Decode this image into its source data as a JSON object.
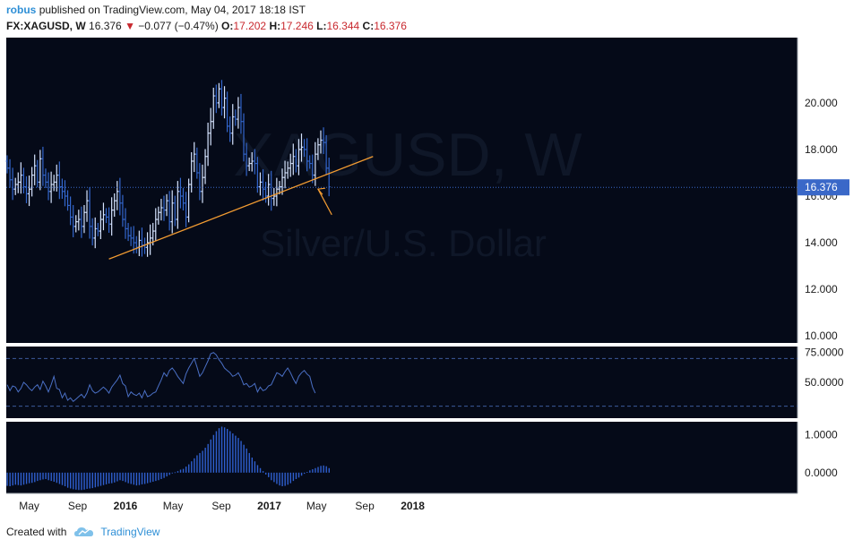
{
  "header": {
    "author": "robus",
    "published": "published on TradingView.com, May 04, 2017 18:18 IST",
    "symbol": "FX:XAGUSD, W",
    "last": "16.376",
    "change_arrow": "▼",
    "change": "−0.077 (−0.47%)",
    "open_label": "O:",
    "open": "17.202",
    "high_label": "H:",
    "high": "17.246",
    "low_label": "L:",
    "low": "16.344",
    "close_label": "C:",
    "close": "16.376"
  },
  "watermark": {
    "symbol": "XAGUSD, W",
    "name": "Silver/U.S. Dollar"
  },
  "footer": {
    "created_with": "Created with",
    "brand": "TradingView",
    "icon": "tradingview-cloud-icon"
  },
  "colors": {
    "background": "#050a18",
    "bar": "#3366cc",
    "bar_highlight": "#d6e4ff",
    "trendline": "#f39c32",
    "rsi_line": "#4a6fc4",
    "macd_hist": "#2f5fcf",
    "last_price_label_bg": "#3a68c8"
  },
  "chart_data": [
    {
      "type": "ohlc",
      "panel": "price",
      "yaxis_ticks": [
        "20.000",
        "18.000",
        "16.000",
        "14.000",
        "12.000",
        "10.000"
      ],
      "ylim": [
        9.7,
        22.8
      ],
      "last_price_label": "16.376",
      "xaxis_ticks": [
        "May",
        "Sep",
        "2016",
        "May",
        "Sep",
        "2017",
        "May",
        "Sep",
        "2018"
      ],
      "xaxis_bold": [
        "2016",
        "2017",
        "2018"
      ],
      "x_start": "2015-03-06",
      "weekly_close": [
        17.2,
        16.7,
        16.3,
        16.5,
        16.6,
        16.9,
        16.4,
        16.1,
        16.3,
        16.9,
        17.3,
        16.6,
        17.6,
        16.9,
        16.6,
        16.2,
        16.5,
        16.6,
        16.9,
        16.4,
        16.2,
        16.0,
        15.6,
        15.1,
        14.7,
        14.9,
        15.0,
        14.7,
        15.3,
        15.8,
        14.7,
        14.2,
        14.6,
        14.5,
        15.0,
        15.2,
        15.1,
        14.8,
        15.4,
        15.8,
        16.2,
        15.7,
        15.0,
        14.6,
        14.3,
        14.2,
        14.0,
        13.8,
        14.1,
        13.9,
        13.8,
        14.0,
        14.2,
        14.5,
        15.0,
        15.3,
        15.5,
        15.4,
        15.8,
        14.9,
        15.7,
        15.0,
        16.2,
        16.0,
        15.7,
        15.1,
        16.5,
        17.5,
        17.8,
        17.0,
        16.2,
        16.8,
        17.7,
        18.7,
        19.2,
        20.3,
        20.0,
        20.6,
        19.8,
        20.2,
        19.0,
        18.7,
        19.4,
        19.3,
        19.8,
        19.2,
        17.8,
        17.3,
        17.4,
        17.5,
        17.4,
        16.4,
        16.6,
        16.3,
        16.0,
        16.5,
        15.9,
        16.0,
        16.3,
        16.4,
        16.8,
        17.0,
        17.2,
        17.4,
        17.7,
        17.3,
        18.0,
        18.1,
        18.0,
        17.5,
        17.4,
        16.9,
        17.8,
        18.2,
        18.4,
        18.3,
        17.2,
        16.4
      ]
    },
    {
      "type": "line",
      "panel": "rsi",
      "yaxis_ticks": [
        "75.0000",
        "50.0000"
      ],
      "ylim": [
        20,
        80
      ],
      "bands": [
        70,
        30
      ],
      "x_start": "2015-03-06",
      "values": [
        48,
        43,
        47,
        46,
        42,
        45,
        50,
        48,
        45,
        43,
        46,
        48,
        44,
        51,
        47,
        42,
        48,
        55,
        45,
        44,
        37,
        41,
        35,
        37,
        34,
        36,
        38,
        40,
        37,
        41,
        48,
        43,
        41,
        42,
        44,
        46,
        44,
        41,
        46,
        49,
        52,
        56,
        49,
        47,
        38,
        42,
        40,
        39,
        41,
        37,
        43,
        38,
        39,
        41,
        42,
        47,
        52,
        58,
        55,
        60,
        62,
        59,
        55,
        52,
        49,
        57,
        62,
        66,
        70,
        63,
        55,
        58,
        63,
        68,
        74,
        75,
        73,
        69,
        66,
        62,
        60,
        58,
        55,
        56,
        58,
        54,
        48,
        49,
        46,
        47,
        49,
        42,
        46,
        43,
        44,
        47,
        48,
        53,
        58,
        57,
        55,
        59,
        62,
        58,
        53,
        49,
        55,
        58,
        60,
        57,
        55,
        46,
        41
      ]
    },
    {
      "type": "bar",
      "panel": "macd_histogram",
      "yaxis_ticks": [
        "1.0000",
        "0.0000"
      ],
      "ylim": [
        -0.55,
        1.35
      ],
      "x_start": "2015-03-06",
      "values": [
        -0.35,
        -0.36,
        -0.34,
        -0.32,
        -0.33,
        -0.34,
        -0.32,
        -0.3,
        -0.28,
        -0.27,
        -0.25,
        -0.22,
        -0.2,
        -0.18,
        -0.17,
        -0.2,
        -0.22,
        -0.24,
        -0.27,
        -0.3,
        -0.33,
        -0.36,
        -0.4,
        -0.42,
        -0.44,
        -0.45,
        -0.46,
        -0.46,
        -0.45,
        -0.43,
        -0.42,
        -0.41,
        -0.39,
        -0.37,
        -0.35,
        -0.33,
        -0.31,
        -0.29,
        -0.28,
        -0.26,
        -0.23,
        -0.2,
        -0.22,
        -0.25,
        -0.28,
        -0.3,
        -0.32,
        -0.34,
        -0.33,
        -0.31,
        -0.3,
        -0.28,
        -0.26,
        -0.24,
        -0.22,
        -0.2,
        -0.17,
        -0.14,
        -0.1,
        -0.06,
        -0.02,
        0.01,
        0.04,
        0.08,
        0.1,
        0.16,
        0.22,
        0.3,
        0.38,
        0.46,
        0.52,
        0.58,
        0.66,
        0.76,
        0.88,
        1.0,
        1.1,
        1.18,
        1.22,
        1.2,
        1.16,
        1.1,
        1.04,
        0.98,
        0.92,
        0.84,
        0.74,
        0.64,
        0.52,
        0.4,
        0.3,
        0.2,
        0.12,
        0.04,
        -0.05,
        -0.12,
        -0.2,
        -0.25,
        -0.3,
        -0.34,
        -0.36,
        -0.35,
        -0.32,
        -0.28,
        -0.22,
        -0.17,
        -0.13,
        -0.08,
        -0.03,
        0.02,
        0.06,
        0.09,
        0.12,
        0.15,
        0.18,
        0.19,
        0.17,
        0.12
      ]
    }
  ]
}
